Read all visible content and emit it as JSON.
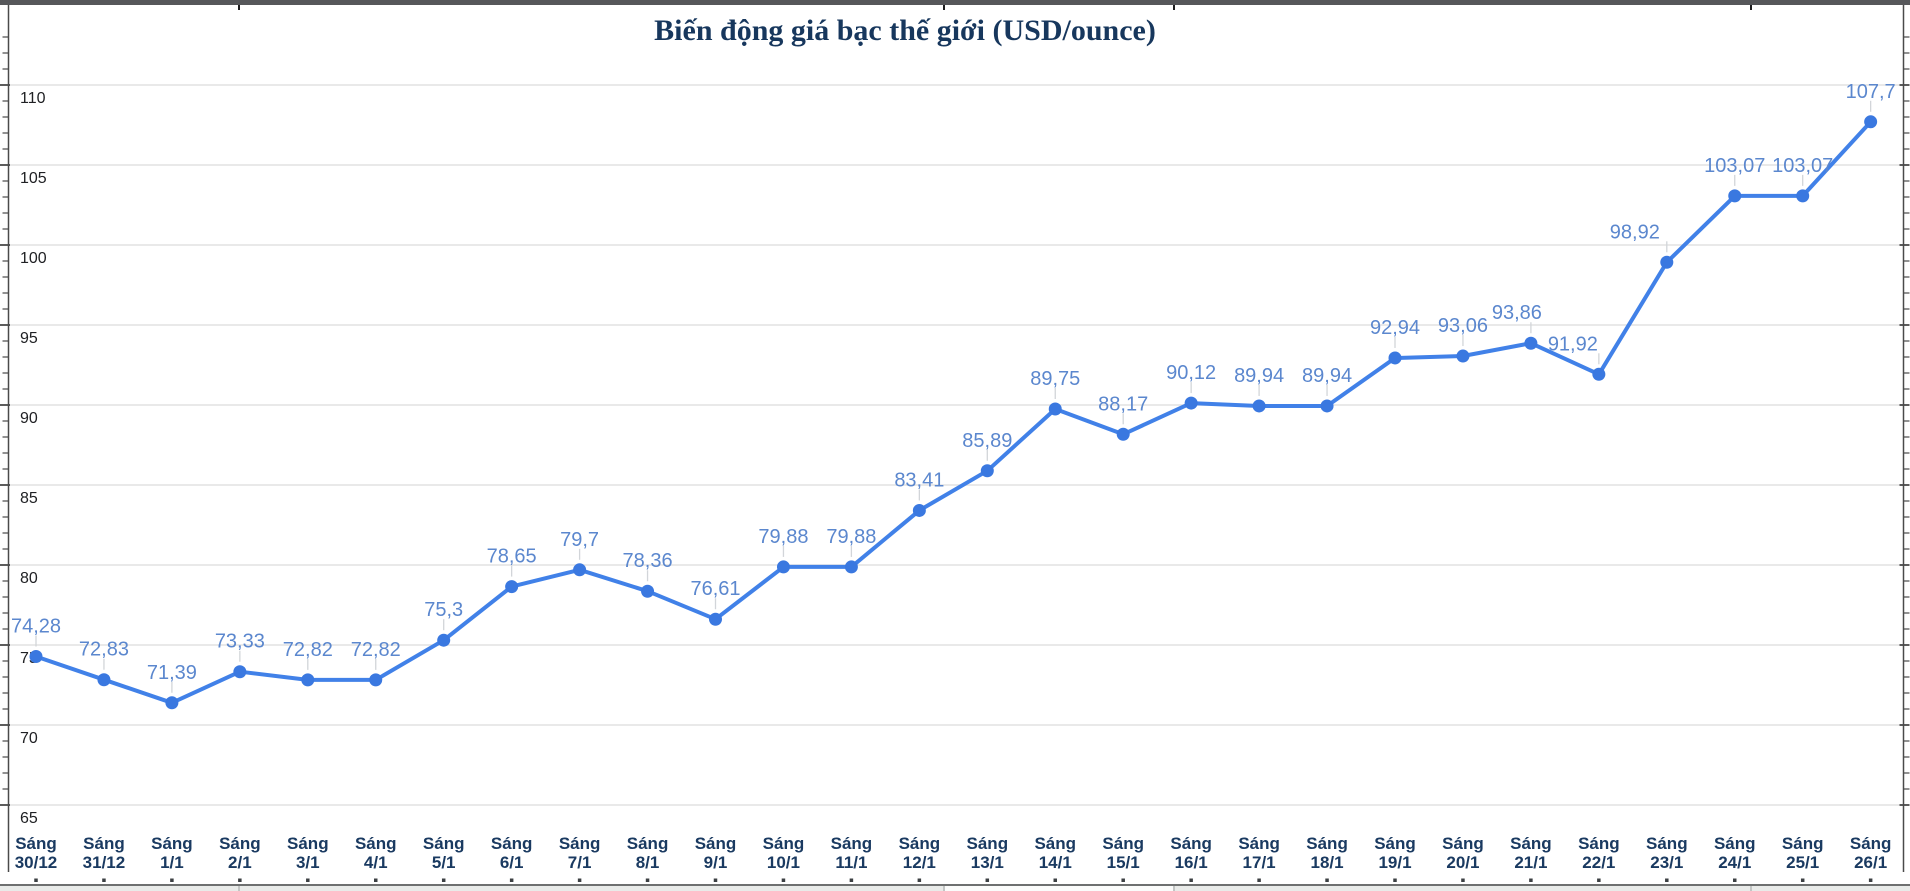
{
  "chart_data": {
    "type": "line",
    "title": "Biến động giá bạc thế giới (USD/ounce)",
    "x_label_prefix": "Sáng",
    "categories": [
      "30/12",
      "31/12",
      "1/1",
      "2/1",
      "3/1",
      "4/1",
      "5/1",
      "6/1",
      "7/1",
      "8/1",
      "9/1",
      "10/1",
      "11/1",
      "12/1",
      "13/1",
      "14/1",
      "15/1",
      "16/1",
      "17/1",
      "18/1",
      "19/1",
      "20/1",
      "21/1",
      "22/1",
      "23/1",
      "24/1",
      "25/1",
      "26/1"
    ],
    "values": [
      74.28,
      72.83,
      71.39,
      73.33,
      72.82,
      72.82,
      75.3,
      78.65,
      79.7,
      78.36,
      76.61,
      79.88,
      79.88,
      83.41,
      85.89,
      89.75,
      88.17,
      90.12,
      89.94,
      89.94,
      92.94,
      93.06,
      93.86,
      91.92,
      98.92,
      103.07,
      103.07,
      107.7
    ],
    "value_labels": [
      "74,28",
      "72,83",
      "71,39",
      "73,33",
      "72,82",
      "72,82",
      "75,3",
      "78,65",
      "79,7",
      "78,36",
      "76,61",
      "79,88",
      "79,88",
      "83,41",
      "85,89",
      "89,75",
      "88,17",
      "90,12",
      "89,94",
      "89,94",
      "92,94",
      "93,06",
      "93,86",
      "91,92",
      "98,92",
      "103,07",
      "103,07",
      "107,7"
    ],
    "y_axis_ticks": [
      65,
      70,
      75,
      80,
      85,
      90,
      95,
      100,
      105,
      110
    ],
    "ylim": [
      65,
      115
    ],
    "grid": "horizontal-only",
    "legend_position": "none",
    "colors": {
      "line": "#4181e8",
      "point": "#3a78e0",
      "point_label": "#5b87ce",
      "title": "#17375d",
      "category_label": "#1a3a61",
      "y_axis_label": "#202124",
      "gridline": "#e2e2e2",
      "axis_line": "#4a4a4a",
      "leader_line": "#d2d5d9"
    }
  }
}
